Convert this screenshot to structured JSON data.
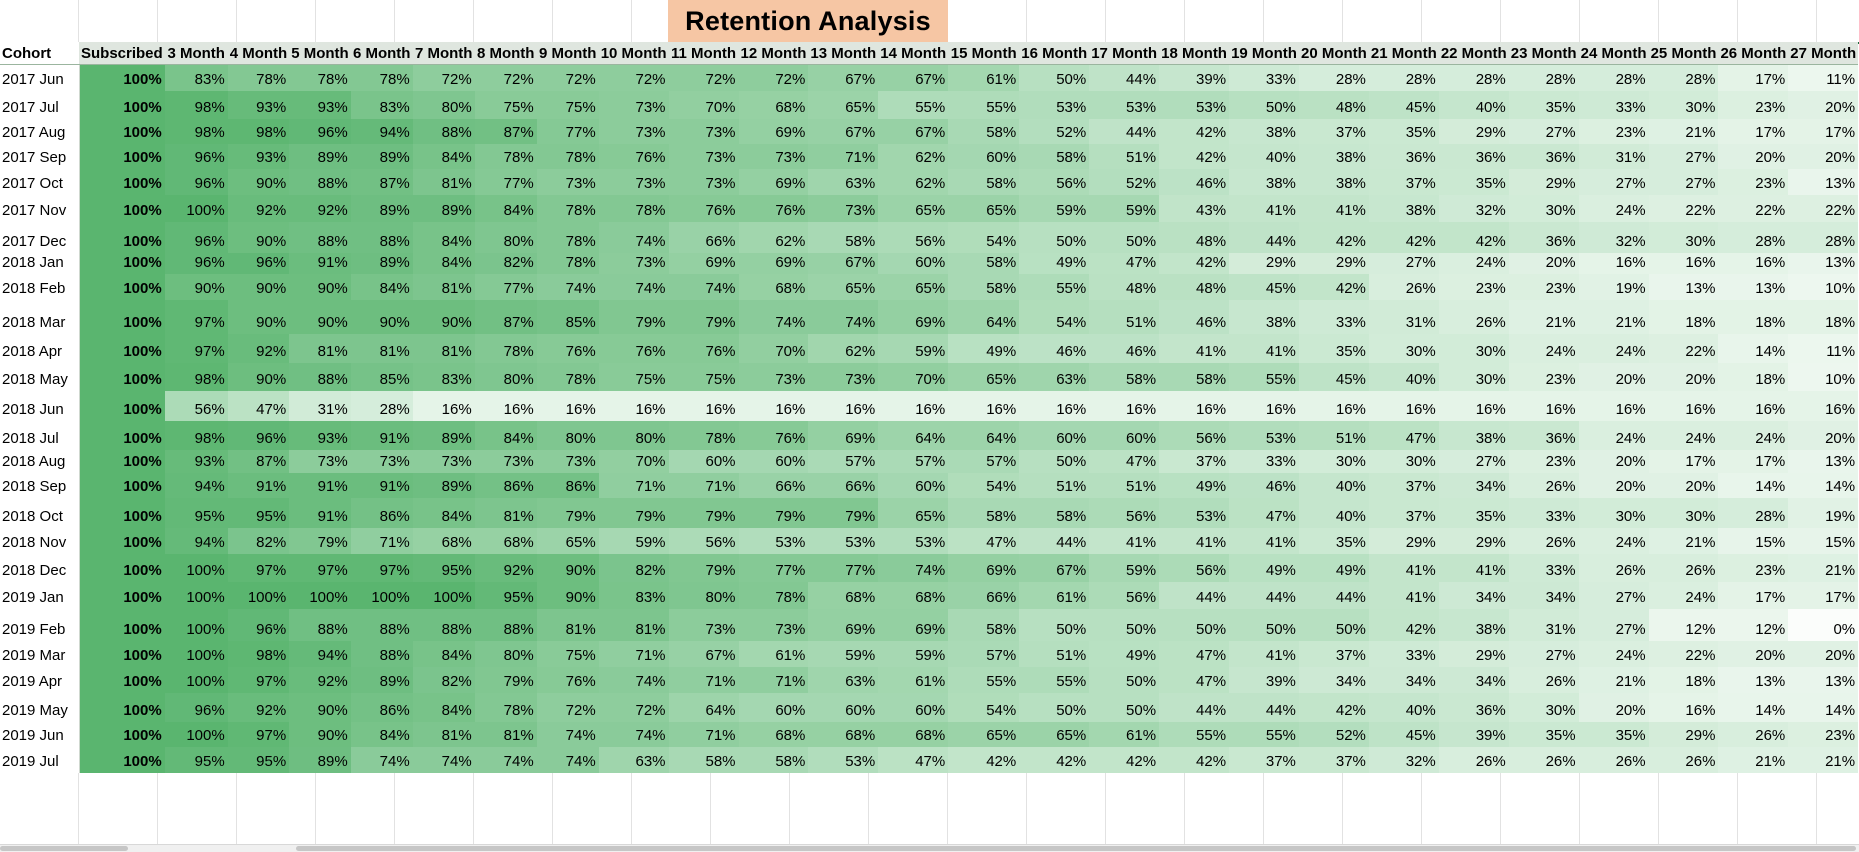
{
  "sheet": {
    "title": "Retention Analysis"
  },
  "table": {
    "headers": [
      "Cohort",
      "Subscribed",
      "3 Month",
      "4 Month",
      "5 Month",
      "6 Month",
      "7 Month",
      "8 Month",
      "9 Month",
      "10 Month",
      "11 Month",
      "12 Month",
      "13 Month",
      "14 Month",
      "15 Month",
      "16 Month",
      "17 Month",
      "18 Month",
      "19 Month",
      "20 Month",
      "21 Month",
      "22 Month",
      "23 Month",
      "24 Month",
      "25 Month",
      "26 Month",
      "27 Month"
    ],
    "rows": [
      {
        "cohort": "2017 Jun",
        "values": [
          100,
          83,
          78,
          78,
          78,
          72,
          72,
          72,
          72,
          72,
          72,
          67,
          67,
          61,
          50,
          44,
          39,
          33,
          28,
          28,
          28,
          28,
          28,
          28,
          17,
          11
        ]
      },
      {
        "cohort": "2017 Jul",
        "values": [
          100,
          98,
          93,
          93,
          83,
          80,
          75,
          75,
          73,
          70,
          68,
          65,
          55,
          55,
          53,
          53,
          53,
          50,
          48,
          45,
          40,
          35,
          33,
          30,
          23,
          20
        ]
      },
      {
        "cohort": "2017 Aug",
        "values": [
          100,
          98,
          98,
          96,
          94,
          88,
          87,
          77,
          73,
          73,
          69,
          67,
          67,
          58,
          52,
          44,
          42,
          38,
          37,
          35,
          29,
          27,
          23,
          21,
          17,
          17
        ]
      },
      {
        "cohort": "2017 Sep",
        "values": [
          100,
          96,
          93,
          89,
          89,
          84,
          78,
          78,
          76,
          73,
          73,
          71,
          62,
          60,
          58,
          51,
          42,
          40,
          38,
          36,
          36,
          36,
          31,
          27,
          20,
          20
        ]
      },
      {
        "cohort": "2017 Oct",
        "values": [
          100,
          96,
          90,
          88,
          87,
          81,
          77,
          73,
          73,
          73,
          69,
          63,
          62,
          58,
          56,
          52,
          46,
          38,
          38,
          37,
          35,
          29,
          27,
          27,
          23,
          13
        ]
      },
      {
        "cohort": "2017 Nov",
        "values": [
          100,
          100,
          92,
          92,
          89,
          89,
          84,
          78,
          78,
          76,
          76,
          73,
          65,
          65,
          59,
          59,
          43,
          41,
          41,
          38,
          32,
          30,
          24,
          22,
          22,
          22
        ]
      },
      {
        "cohort": "2017 Dec",
        "values": [
          100,
          96,
          90,
          88,
          88,
          84,
          80,
          78,
          74,
          66,
          62,
          58,
          56,
          54,
          50,
          50,
          48,
          44,
          42,
          42,
          42,
          36,
          32,
          30,
          28,
          28
        ]
      },
      {
        "cohort": "2018 Jan",
        "values": [
          100,
          96,
          96,
          91,
          89,
          84,
          82,
          78,
          73,
          69,
          69,
          67,
          60,
          58,
          49,
          47,
          42,
          29,
          29,
          27,
          24,
          20,
          16,
          16,
          16,
          13
        ]
      },
      {
        "cohort": "2018 Feb",
        "values": [
          100,
          90,
          90,
          90,
          84,
          81,
          77,
          74,
          74,
          74,
          68,
          65,
          65,
          58,
          55,
          48,
          48,
          45,
          42,
          26,
          23,
          23,
          19,
          13,
          13,
          10
        ]
      },
      {
        "cohort": "2018 Mar",
        "values": [
          100,
          97,
          90,
          90,
          90,
          90,
          87,
          85,
          79,
          79,
          74,
          74,
          69,
          64,
          54,
          51,
          46,
          38,
          33,
          31,
          26,
          21,
          21,
          18,
          18,
          18
        ]
      },
      {
        "cohort": "2018 Apr",
        "values": [
          100,
          97,
          92,
          81,
          81,
          81,
          78,
          76,
          76,
          76,
          70,
          62,
          59,
          49,
          46,
          46,
          41,
          41,
          35,
          30,
          30,
          24,
          24,
          22,
          14,
          11
        ]
      },
      {
        "cohort": "2018 May",
        "values": [
          100,
          98,
          90,
          88,
          85,
          83,
          80,
          78,
          75,
          75,
          73,
          73,
          70,
          65,
          63,
          58,
          58,
          55,
          45,
          40,
          30,
          23,
          20,
          20,
          18,
          10
        ]
      },
      {
        "cohort": "2018 Jun",
        "values": [
          100,
          56,
          47,
          31,
          28,
          16,
          16,
          16,
          16,
          16,
          16,
          16,
          16,
          16,
          16,
          16,
          16,
          16,
          16,
          16,
          16,
          16,
          16,
          16,
          16,
          16
        ]
      },
      {
        "cohort": "2018 Jul",
        "values": [
          100,
          98,
          96,
          93,
          91,
          89,
          84,
          80,
          80,
          78,
          76,
          69,
          64,
          64,
          60,
          60,
          56,
          53,
          51,
          47,
          38,
          36,
          24,
          24,
          24,
          20
        ]
      },
      {
        "cohort": "2018 Aug",
        "values": [
          100,
          93,
          87,
          73,
          73,
          73,
          73,
          73,
          70,
          60,
          60,
          57,
          57,
          57,
          50,
          47,
          37,
          33,
          30,
          30,
          27,
          23,
          20,
          17,
          17,
          13
        ]
      },
      {
        "cohort": "2018 Sep",
        "values": [
          100,
          94,
          91,
          91,
          91,
          89,
          86,
          86,
          71,
          71,
          66,
          66,
          60,
          54,
          51,
          51,
          49,
          46,
          40,
          37,
          34,
          26,
          20,
          20,
          14,
          14
        ]
      },
      {
        "cohort": "2018 Oct",
        "values": [
          100,
          95,
          95,
          91,
          86,
          84,
          81,
          79,
          79,
          79,
          79,
          79,
          65,
          58,
          58,
          56,
          53,
          47,
          40,
          37,
          35,
          33,
          30,
          30,
          28,
          19
        ]
      },
      {
        "cohort": "2018 Nov",
        "values": [
          100,
          94,
          82,
          79,
          71,
          68,
          68,
          65,
          59,
          56,
          53,
          53,
          53,
          47,
          44,
          41,
          41,
          41,
          35,
          29,
          29,
          26,
          24,
          21,
          15,
          15
        ]
      },
      {
        "cohort": "2018 Dec",
        "values": [
          100,
          100,
          97,
          97,
          97,
          95,
          92,
          90,
          82,
          79,
          77,
          77,
          74,
          69,
          67,
          59,
          56,
          49,
          49,
          41,
          41,
          33,
          26,
          26,
          23,
          21
        ]
      },
      {
        "cohort": "2019 Jan",
        "values": [
          100,
          100,
          100,
          100,
          100,
          100,
          95,
          90,
          83,
          80,
          78,
          68,
          68,
          66,
          61,
          56,
          44,
          44,
          44,
          41,
          34,
          34,
          27,
          24,
          17,
          17
        ]
      },
      {
        "cohort": "2019 Feb",
        "values": [
          100,
          100,
          96,
          88,
          88,
          88,
          88,
          81,
          81,
          73,
          73,
          69,
          69,
          58,
          50,
          50,
          50,
          50,
          50,
          42,
          38,
          31,
          27,
          12,
          12,
          0
        ]
      },
      {
        "cohort": "2019 Mar",
        "values": [
          100,
          100,
          98,
          94,
          88,
          84,
          80,
          75,
          71,
          67,
          61,
          59,
          59,
          57,
          51,
          49,
          47,
          41,
          37,
          33,
          29,
          27,
          24,
          22,
          20,
          20
        ]
      },
      {
        "cohort": "2019 Apr",
        "values": [
          100,
          100,
          97,
          92,
          89,
          82,
          79,
          76,
          74,
          71,
          71,
          63,
          61,
          55,
          55,
          50,
          47,
          39,
          34,
          34,
          34,
          26,
          21,
          18,
          13,
          13
        ]
      },
      {
        "cohort": "2019 May",
        "values": [
          100,
          96,
          92,
          90,
          86,
          84,
          78,
          72,
          72,
          64,
          60,
          60,
          60,
          54,
          50,
          50,
          44,
          44,
          42,
          40,
          36,
          30,
          20,
          16,
          14,
          14
        ]
      },
      {
        "cohort": "2019 Jun",
        "values": [
          100,
          100,
          97,
          90,
          84,
          81,
          81,
          74,
          74,
          71,
          68,
          68,
          68,
          65,
          65,
          61,
          55,
          55,
          52,
          45,
          39,
          35,
          35,
          29,
          26,
          23
        ]
      },
      {
        "cohort": "2019 Jul",
        "values": [
          100,
          95,
          95,
          89,
          74,
          74,
          74,
          74,
          63,
          58,
          58,
          53,
          47,
          42,
          42,
          42,
          42,
          37,
          37,
          32,
          26,
          26,
          26,
          26,
          21,
          21
        ]
      }
    ],
    "percent_suffix": "%",
    "color_scale": {
      "low": "#fbfdfb",
      "mid": "#b7e0c1",
      "high": "#5ab56f"
    }
  }
}
